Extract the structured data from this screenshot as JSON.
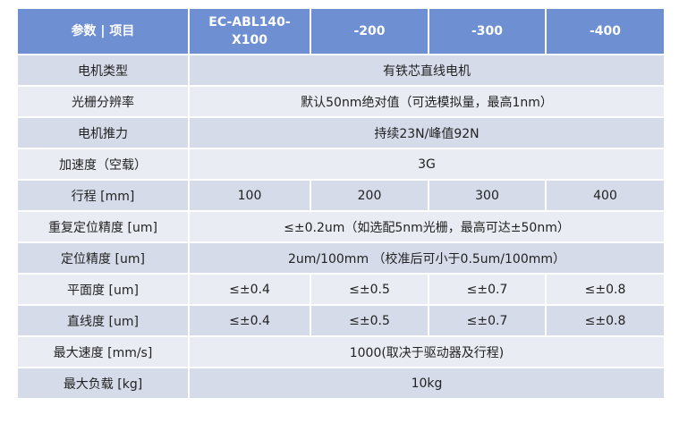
{
  "table": {
    "header": [
      "参数 | 项目",
      "EC-ABL140-X100",
      "-200",
      "-300",
      "-400"
    ],
    "rows": [
      {
        "label": "电机类型",
        "cells": [
          "有铁芯直线电机"
        ]
      },
      {
        "label": "光栅分辨率",
        "cells": [
          "默认50nm绝对值（可选模拟量，最高1nm）"
        ]
      },
      {
        "label": "电机推力",
        "cells": [
          "持续23N/峰值92N"
        ]
      },
      {
        "label": "加速度（空载）",
        "cells": [
          "3G"
        ]
      },
      {
        "label": "行程 [mm]",
        "cells": [
          "100",
          "200",
          "300",
          "400"
        ]
      },
      {
        "label": "重复定位精度 [um]",
        "cells": [
          "≤±0.2um（如选配5nm光栅，最高可达±50nm）"
        ]
      },
      {
        "label": "定位精度 [um]",
        "cells": [
          "2um/100mm （校准后可小于0.5um/100mm）"
        ]
      },
      {
        "label": "平面度 [um]",
        "cells": [
          "≤±0.4",
          "≤±0.5",
          "≤±0.7",
          "≤±0.8"
        ]
      },
      {
        "label": "直线度 [um]",
        "cells": [
          "≤±0.4",
          "≤±0.5",
          "≤±0.7",
          "≤±0.8"
        ]
      },
      {
        "label": "最大速度 [mm/s]",
        "cells": [
          "1000(取决于驱动器及行程)"
        ]
      },
      {
        "label": "最大负载 [kg]",
        "cells": [
          "10kg"
        ]
      }
    ]
  }
}
